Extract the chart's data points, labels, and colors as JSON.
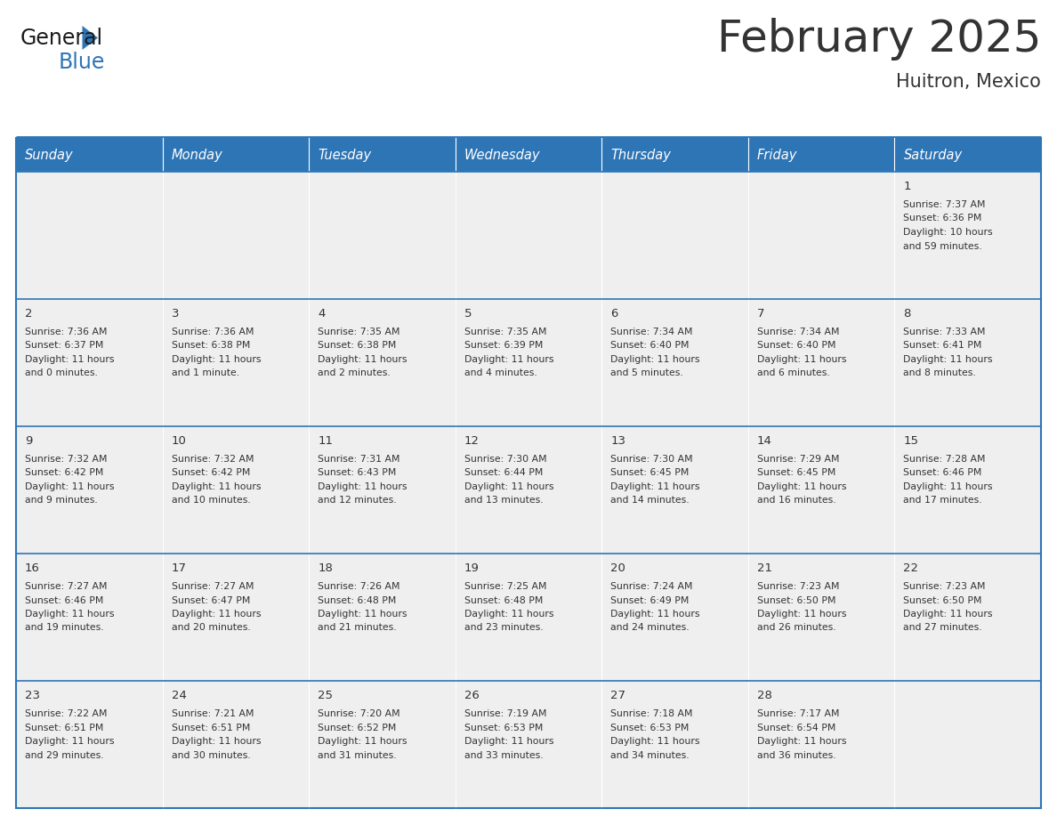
{
  "title": "February 2025",
  "subtitle": "Huitron, Mexico",
  "days_of_week": [
    "Sunday",
    "Monday",
    "Tuesday",
    "Wednesday",
    "Thursday",
    "Friday",
    "Saturday"
  ],
  "header_bg": "#2E75B6",
  "header_text_color": "#FFFFFF",
  "cell_bg_light": "#EFEFEF",
  "cell_bg_white": "#FFFFFF",
  "border_color": "#2E75B6",
  "text_color": "#333333",
  "title_color": "#333333",
  "calendar_data": [
    [
      null,
      null,
      null,
      null,
      null,
      null,
      {
        "day": "1",
        "sunrise": "7:37 AM",
        "sunset": "6:36 PM",
        "daylight_h": "10",
        "daylight_m": "59 minutes."
      }
    ],
    [
      {
        "day": "2",
        "sunrise": "7:36 AM",
        "sunset": "6:37 PM",
        "daylight_h": "11",
        "daylight_m": "0 minutes."
      },
      {
        "day": "3",
        "sunrise": "7:36 AM",
        "sunset": "6:38 PM",
        "daylight_h": "11",
        "daylight_m": "1 minute."
      },
      {
        "day": "4",
        "sunrise": "7:35 AM",
        "sunset": "6:38 PM",
        "daylight_h": "11",
        "daylight_m": "2 minutes."
      },
      {
        "day": "5",
        "sunrise": "7:35 AM",
        "sunset": "6:39 PM",
        "daylight_h": "11",
        "daylight_m": "4 minutes."
      },
      {
        "day": "6",
        "sunrise": "7:34 AM",
        "sunset": "6:40 PM",
        "daylight_h": "11",
        "daylight_m": "5 minutes."
      },
      {
        "day": "7",
        "sunrise": "7:34 AM",
        "sunset": "6:40 PM",
        "daylight_h": "11",
        "daylight_m": "6 minutes."
      },
      {
        "day": "8",
        "sunrise": "7:33 AM",
        "sunset": "6:41 PM",
        "daylight_h": "11",
        "daylight_m": "8 minutes."
      }
    ],
    [
      {
        "day": "9",
        "sunrise": "7:32 AM",
        "sunset": "6:42 PM",
        "daylight_h": "11",
        "daylight_m": "9 minutes."
      },
      {
        "day": "10",
        "sunrise": "7:32 AM",
        "sunset": "6:42 PM",
        "daylight_h": "11",
        "daylight_m": "10 minutes."
      },
      {
        "day": "11",
        "sunrise": "7:31 AM",
        "sunset": "6:43 PM",
        "daylight_h": "11",
        "daylight_m": "12 minutes."
      },
      {
        "day": "12",
        "sunrise": "7:30 AM",
        "sunset": "6:44 PM",
        "daylight_h": "11",
        "daylight_m": "13 minutes."
      },
      {
        "day": "13",
        "sunrise": "7:30 AM",
        "sunset": "6:45 PM",
        "daylight_h": "11",
        "daylight_m": "14 minutes."
      },
      {
        "day": "14",
        "sunrise": "7:29 AM",
        "sunset": "6:45 PM",
        "daylight_h": "11",
        "daylight_m": "16 minutes."
      },
      {
        "day": "15",
        "sunrise": "7:28 AM",
        "sunset": "6:46 PM",
        "daylight_h": "11",
        "daylight_m": "17 minutes."
      }
    ],
    [
      {
        "day": "16",
        "sunrise": "7:27 AM",
        "sunset": "6:46 PM",
        "daylight_h": "11",
        "daylight_m": "19 minutes."
      },
      {
        "day": "17",
        "sunrise": "7:27 AM",
        "sunset": "6:47 PM",
        "daylight_h": "11",
        "daylight_m": "20 minutes."
      },
      {
        "day": "18",
        "sunrise": "7:26 AM",
        "sunset": "6:48 PM",
        "daylight_h": "11",
        "daylight_m": "21 minutes."
      },
      {
        "day": "19",
        "sunrise": "7:25 AM",
        "sunset": "6:48 PM",
        "daylight_h": "11",
        "daylight_m": "23 minutes."
      },
      {
        "day": "20",
        "sunrise": "7:24 AM",
        "sunset": "6:49 PM",
        "daylight_h": "11",
        "daylight_m": "24 minutes."
      },
      {
        "day": "21",
        "sunrise": "7:23 AM",
        "sunset": "6:50 PM",
        "daylight_h": "11",
        "daylight_m": "26 minutes."
      },
      {
        "day": "22",
        "sunrise": "7:23 AM",
        "sunset": "6:50 PM",
        "daylight_h": "11",
        "daylight_m": "27 minutes."
      }
    ],
    [
      {
        "day": "23",
        "sunrise": "7:22 AM",
        "sunset": "6:51 PM",
        "daylight_h": "11",
        "daylight_m": "29 minutes."
      },
      {
        "day": "24",
        "sunrise": "7:21 AM",
        "sunset": "6:51 PM",
        "daylight_h": "11",
        "daylight_m": "30 minutes."
      },
      {
        "day": "25",
        "sunrise": "7:20 AM",
        "sunset": "6:52 PM",
        "daylight_h": "11",
        "daylight_m": "31 minutes."
      },
      {
        "day": "26",
        "sunrise": "7:19 AM",
        "sunset": "6:53 PM",
        "daylight_h": "11",
        "daylight_m": "33 minutes."
      },
      {
        "day": "27",
        "sunrise": "7:18 AM",
        "sunset": "6:53 PM",
        "daylight_h": "11",
        "daylight_m": "34 minutes."
      },
      {
        "day": "28",
        "sunrise": "7:17 AM",
        "sunset": "6:54 PM",
        "daylight_h": "11",
        "daylight_m": "36 minutes."
      },
      null
    ]
  ],
  "logo_general_color": "#1a1a1a",
  "logo_blue_color": "#2E75B6",
  "logo_triangle_color": "#2E75B6"
}
